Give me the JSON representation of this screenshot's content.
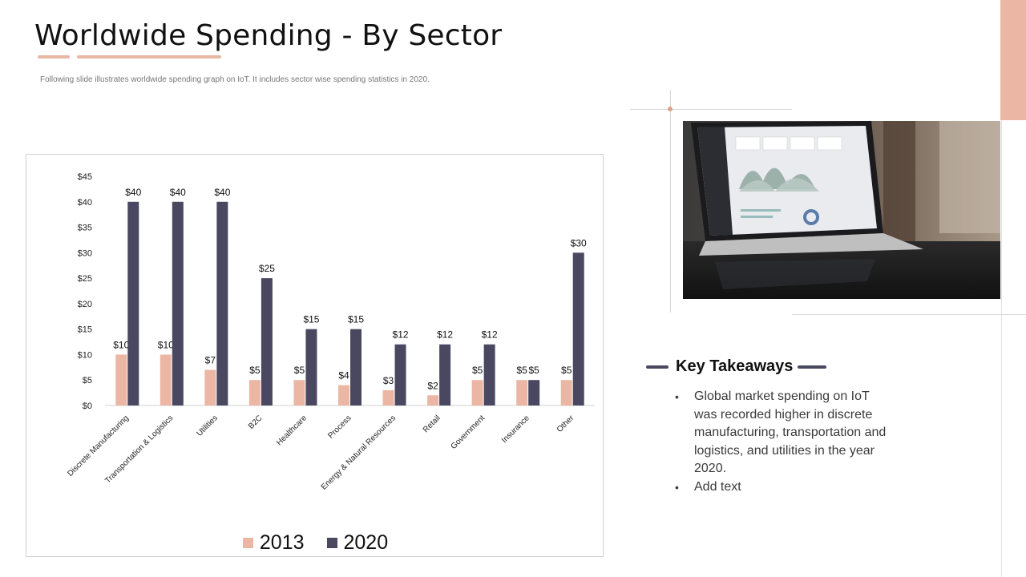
{
  "header": {
    "title": "Worldwide Spending - By Sector",
    "subtitle": "Following slide illustrates worldwide spending graph on IoT. It includes sector wise spending statistics in 2020."
  },
  "colors": {
    "series_2013": "#ebb7a4",
    "series_2020": "#4a4860",
    "accent": "#ebb7a4"
  },
  "chart_data": {
    "type": "bar",
    "categories": [
      "Discrete Manufacturing",
      "Transportation & Logistics",
      "Utilities",
      "B2C",
      "Healthcare",
      "Process",
      "Energy & Natural Resources",
      "Retail",
      "Government",
      "Insurance",
      "Other"
    ],
    "series": [
      {
        "name": "2013",
        "values": [
          10,
          10,
          7,
          5,
          5,
          4,
          3,
          2,
          5,
          5,
          5
        ],
        "labels": [
          "$10",
          "$10",
          "$7",
          "$5",
          "$5",
          "$4",
          "$3",
          "$2",
          "$5",
          "$5",
          "$5"
        ]
      },
      {
        "name": "2020",
        "values": [
          40,
          40,
          40,
          25,
          15,
          15,
          12,
          12,
          12,
          5,
          30
        ],
        "labels": [
          "$40",
          "$40",
          "$40",
          "$25",
          "$15",
          "$15",
          "$12",
          "$12",
          "$12",
          "$5",
          "$30"
        ]
      }
    ],
    "y_ticks": [
      "$0",
      "$5",
      "$10",
      "$15",
      "$20",
      "$25",
      "$30",
      "$35",
      "$40",
      "$45"
    ],
    "ylim": [
      0,
      45
    ],
    "grid": false,
    "legend": "bottom"
  },
  "takeaways": {
    "title": "Key Takeaways",
    "items": [
      "Global market spending on IoT was recorded higher in discrete manufacturing, transportation and logistics, and utilities in the year 2020.",
      "Add text"
    ]
  }
}
